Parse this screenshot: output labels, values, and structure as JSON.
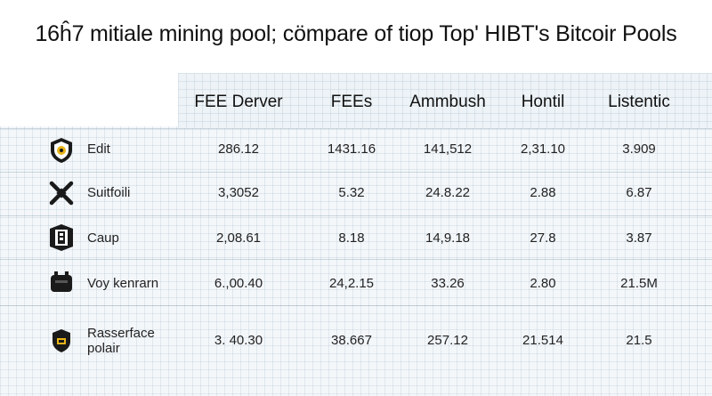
{
  "title": "16ĥ7 mitiale mining pool; cömpare of tiop Top' HIBT's Bitcoir Pools",
  "columns": [
    "FEE Derver",
    "FEEs",
    "Ammbush",
    "Hontil",
    "Listentic"
  ],
  "rows": [
    {
      "label": "Edit",
      "icon": "shield-icon",
      "values": [
        "286.12",
        "1431.16",
        "141,512",
        "2,31.10",
        "3.909"
      ]
    },
    {
      "label": "Suitfoili",
      "icon": "crossed-tools-icon",
      "values": [
        "3,3052",
        "5.32",
        "24.8.22",
        "2.88",
        "6.87"
      ]
    },
    {
      "label": "Caup",
      "icon": "badge-icon",
      "values": [
        "2,08.61",
        "8.18",
        "14,9.18",
        "27.8",
        "3.87"
      ]
    },
    {
      "label": "Voy kenrarn",
      "icon": "hardware-icon",
      "values": [
        "6.,00.40",
        "24,2.15",
        "33.26",
        "2.80",
        "21.5M"
      ]
    },
    {
      "label": "Rasserface\npolair",
      "icon": "shield-small-icon",
      "values": [
        "3. 40.30",
        "38.667",
        "257.12",
        "21.514",
        "21.5"
      ]
    }
  ]
}
